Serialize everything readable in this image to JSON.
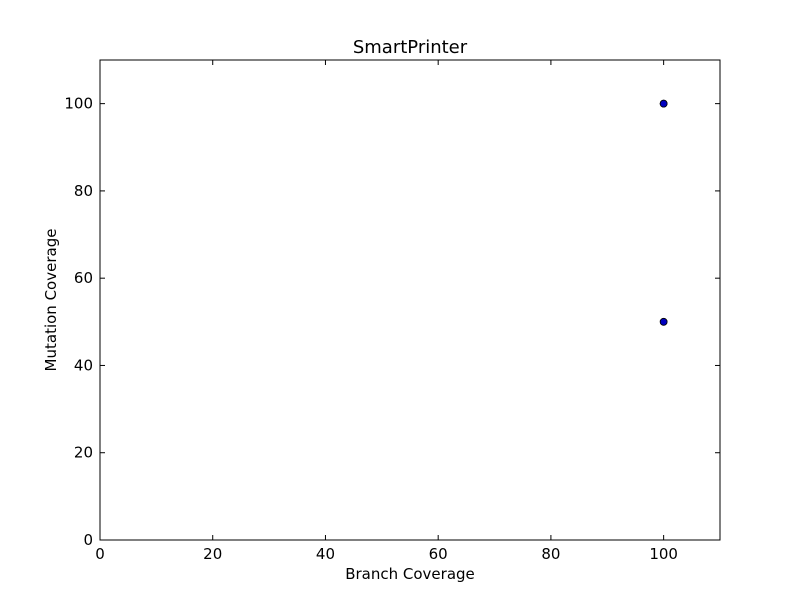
{
  "chart_data": {
    "type": "scatter",
    "title": "SmartPrinter",
    "xlabel": "Branch Coverage",
    "ylabel": "Mutation Coverage",
    "xlim": [
      0,
      110
    ],
    "ylim": [
      0,
      110
    ],
    "xticks": [
      0,
      20,
      40,
      60,
      80,
      100
    ],
    "yticks": [
      0,
      20,
      40,
      60,
      80,
      100
    ],
    "grid": false,
    "series": [
      {
        "points": [
          {
            "x": 100,
            "y": 100
          },
          {
            "x": 100,
            "y": 100
          },
          {
            "x": 100,
            "y": 50
          }
        ],
        "color": "#0000bf"
      }
    ]
  }
}
